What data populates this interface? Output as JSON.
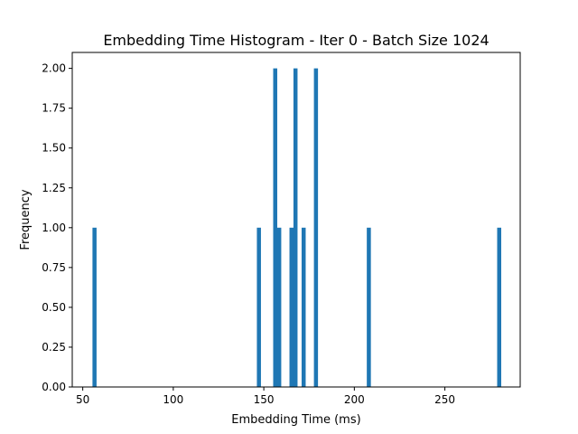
{
  "chart_data": {
    "type": "bar",
    "title": "Embedding Time Histogram - Iter 0 - Batch Size 1024",
    "xlabel": "Embedding Time (ms)",
    "ylabel": "Frequency",
    "xlim": [
      44.2,
      291.6
    ],
    "ylim": [
      0,
      2.1
    ],
    "x_ticks": [
      50,
      100,
      150,
      200,
      250
    ],
    "x_tick_labels": [
      "50",
      "100",
      "150",
      "200",
      "250"
    ],
    "y_ticks": [
      0,
      0.25,
      0.5,
      0.75,
      1.0,
      1.25,
      1.5,
      1.75,
      2.0
    ],
    "y_tick_labels": [
      "0.00",
      "0.25",
      "0.50",
      "0.75",
      "1.00",
      "1.25",
      "1.50",
      "1.75",
      "2.00"
    ],
    "bin_width": 2.25,
    "bins": [
      {
        "x": 56.5,
        "count": 1
      },
      {
        "x": 147.3,
        "count": 1
      },
      {
        "x": 156.3,
        "count": 2
      },
      {
        "x": 158.5,
        "count": 1
      },
      {
        "x": 165.3,
        "count": 1
      },
      {
        "x": 167.5,
        "count": 2
      },
      {
        "x": 172.0,
        "count": 1
      },
      {
        "x": 178.8,
        "count": 2
      },
      {
        "x": 208.0,
        "count": 1
      },
      {
        "x": 280.0,
        "count": 1
      }
    ],
    "grid": false,
    "bar_color": "#1f77b4"
  }
}
